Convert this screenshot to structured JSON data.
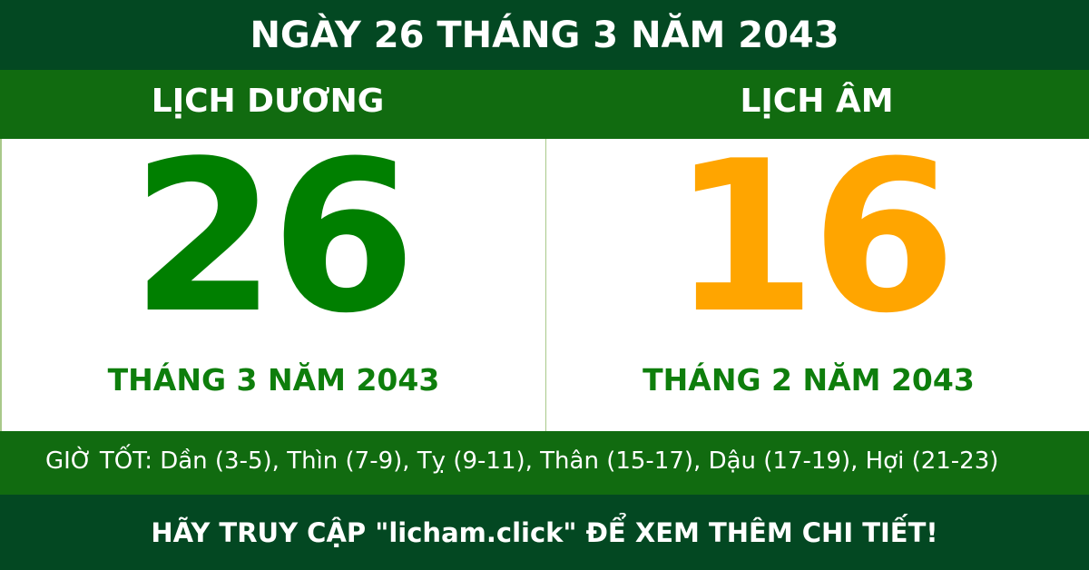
{
  "header": {
    "title": "NGÀY 26 THÁNG 3 NĂM 2043"
  },
  "solar": {
    "label": "LỊCH DƯƠNG",
    "day": "26",
    "month_year": "THÁNG 3 NĂM 2043"
  },
  "lunar": {
    "label": "LỊCH ÂM",
    "day": "16",
    "month_year": "THÁNG 2 NĂM 2043"
  },
  "good_hours": "GIỜ TỐT: Dần (3-5), Thìn (7-9), Tỵ (9-11), Thân (15-17), Dậu (17-19), Hợi (21-23)",
  "footer": "HÃY TRUY CẬP \"licham.click\" ĐỂ XEM THÊM CHI TIẾT!",
  "colors": {
    "dark_green": "#034822",
    "green": "#116b10",
    "solar_day": "#007f00",
    "lunar_day": "#ffa500",
    "month_text": "#0e7e0c"
  }
}
